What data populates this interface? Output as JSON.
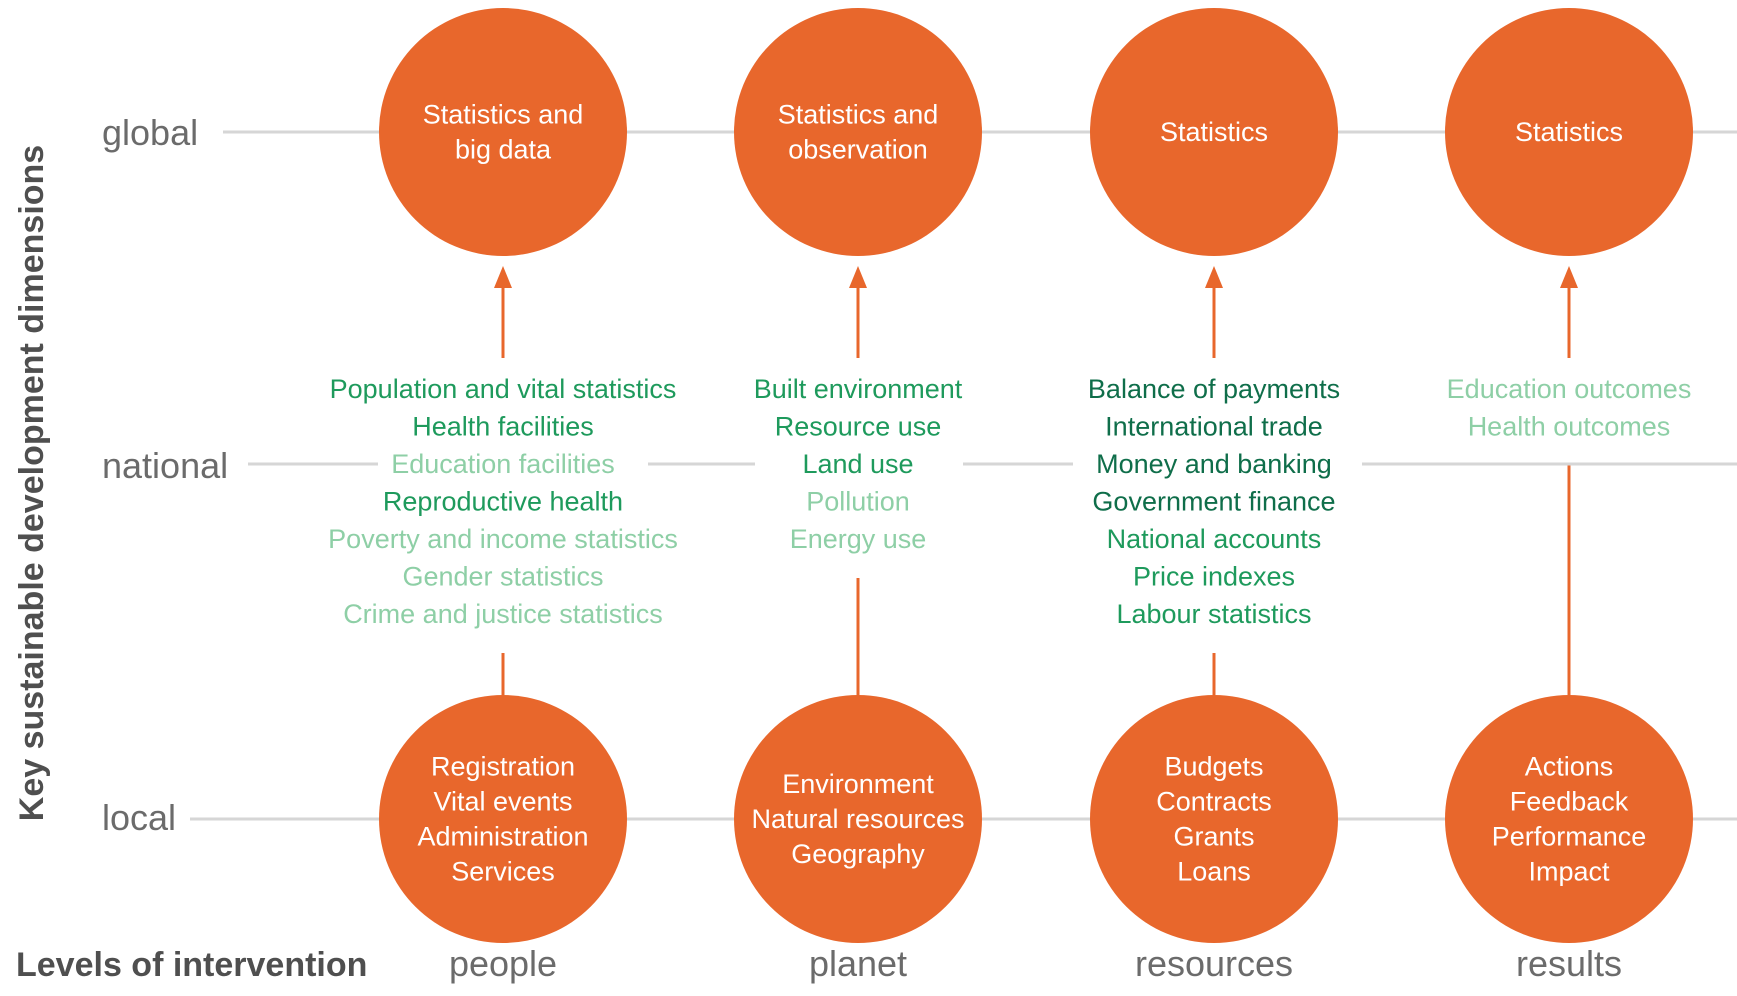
{
  "axis": {
    "vertical_title": "Key sustainable development dimensions",
    "horizontal_title": "Levels of intervention"
  },
  "rows": [
    {
      "label": "global"
    },
    {
      "label": "national"
    },
    {
      "label": "local"
    }
  ],
  "columns": [
    {
      "label": "people",
      "top_circle": [
        "Statistics and",
        "big data"
      ],
      "bottom_circle": [
        "Registration",
        "Vital events",
        "Administration",
        "Services"
      ],
      "items": [
        {
          "text": "Population and vital statistics",
          "tone": "dark"
        },
        {
          "text": "Health facilities",
          "tone": "dark"
        },
        {
          "text": "Education facilities",
          "tone": "light"
        },
        {
          "text": "Reproductive health",
          "tone": "dark"
        },
        {
          "text": "Poverty and income statistics",
          "tone": "light"
        },
        {
          "text": "Gender statistics",
          "tone": "light"
        },
        {
          "text": "Crime and justice statistics",
          "tone": "light"
        }
      ]
    },
    {
      "label": "planet",
      "top_circle": [
        "Statistics and",
        "observation"
      ],
      "bottom_circle": [
        "Environment",
        "Natural resources",
        "Geography"
      ],
      "items": [
        {
          "text": "Built environment",
          "tone": "dark"
        },
        {
          "text": "Resource use",
          "tone": "dark"
        },
        {
          "text": "Land use",
          "tone": "dark"
        },
        {
          "text": "Pollution",
          "tone": "light"
        },
        {
          "text": "Energy use",
          "tone": "light"
        }
      ]
    },
    {
      "label": "resources",
      "top_circle": [
        "Statistics"
      ],
      "bottom_circle": [
        "Budgets",
        "Contracts",
        "Grants",
        "Loans"
      ],
      "items": [
        {
          "text": "Balance of payments",
          "tone": "darker"
        },
        {
          "text": "International trade",
          "tone": "darker"
        },
        {
          "text": "Money and banking",
          "tone": "darker"
        },
        {
          "text": "Government finance",
          "tone": "darker"
        },
        {
          "text": "National accounts",
          "tone": "dark"
        },
        {
          "text": "Price indexes",
          "tone": "dark"
        },
        {
          "text": "Labour statistics",
          "tone": "dark"
        }
      ]
    },
    {
      "label": "results",
      "top_circle": [
        "Statistics"
      ],
      "bottom_circle": [
        "Actions",
        "Feedback",
        "Performance",
        "Impact"
      ],
      "items": [
        {
          "text": "Education outcomes",
          "tone": "light"
        },
        {
          "text": "Health outcomes",
          "tone": "light"
        }
      ]
    }
  ],
  "colors": {
    "circle": "#e8672c",
    "arrow": "#e8672c",
    "grid_line": "#d6d6d6",
    "darker": "#0f6e4a",
    "dark": "#1e9a5c",
    "light": "#8ecfa6",
    "label_gray": "#6b6b6b"
  }
}
